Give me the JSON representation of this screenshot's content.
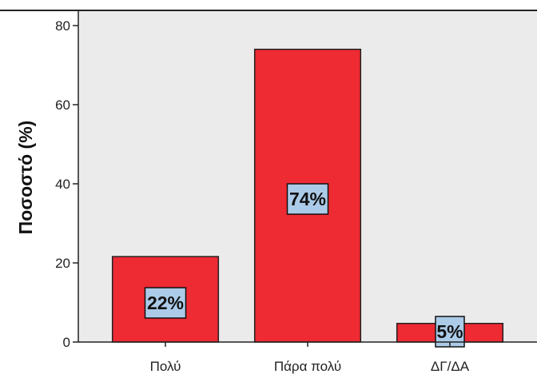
{
  "chart_data": {
    "type": "bar",
    "categories": [
      "Πολύ",
      "Πάρα πολύ",
      "ΔΓ/ΔΑ"
    ],
    "values": [
      21.6,
      74,
      4.7
    ],
    "data_labels": [
      "22%",
      "74%",
      "5%"
    ],
    "title": "",
    "xlabel": "",
    "ylabel": "Ποσοστό (%)",
    "ylim": [
      0,
      80
    ],
    "yticks": [
      0,
      20,
      40,
      60,
      80
    ],
    "ytick_labels": [
      "0",
      "20",
      "40",
      "60",
      "80"
    ],
    "grid": false,
    "legend": "none",
    "colors": {
      "bar": "#ee2a33",
      "bar_edge": "#222222",
      "plot_background": "#ebebeb",
      "label_box": "#abcbe8"
    }
  }
}
